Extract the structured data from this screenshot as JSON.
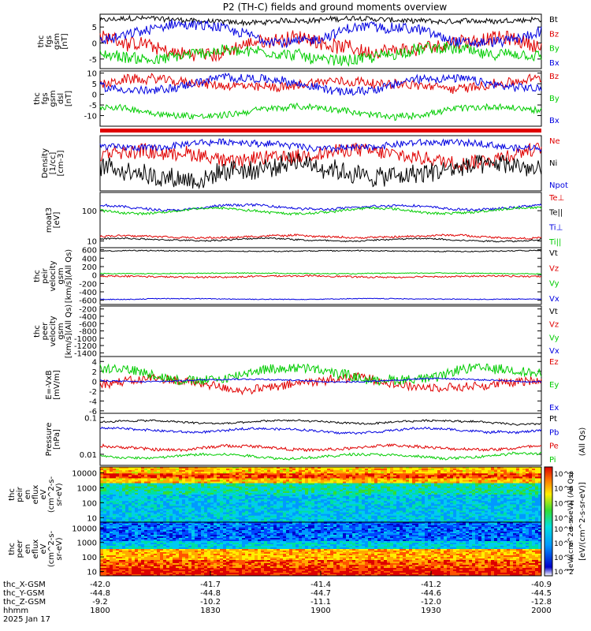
{
  "title": "P2 (TH-C) fields and ground moments overview",
  "chart_data": {
    "type": "line",
    "panels": [
      {
        "id": "fgs_gsm",
        "ylabel": [
          "thc",
          "fgs",
          "gsm",
          "[nT]"
        ],
        "yticks": [
          5,
          0,
          -5
        ],
        "ylim": [
          -8,
          9
        ],
        "series": [
          {
            "name": "Bt",
            "color": "#000000",
            "level": 7.0,
            "noise": 0.8,
            "swing": 0.6
          },
          {
            "name": "Bz",
            "color": "#e00000",
            "level": -1.0,
            "noise": 2.2,
            "swing": 2.5
          },
          {
            "name": "By",
            "color": "#00cc00",
            "level": -3.5,
            "noise": 1.8,
            "swing": 1.5
          },
          {
            "name": "Bx",
            "color": "#0000e0",
            "level": 3.0,
            "noise": 1.6,
            "swing": 2.5
          }
        ]
      },
      {
        "id": "fgs_gse",
        "ylabel": [
          "thc",
          "fgs",
          "gsm",
          "dsl",
          "[nT]"
        ],
        "yticks": [
          10,
          5,
          0,
          -5,
          -10
        ],
        "ylim": [
          -15,
          11
        ],
        "series": [
          {
            "name": "Bz",
            "color": "#e00000",
            "level": 5.0,
            "noise": 2.2,
            "swing": 2.0
          },
          {
            "name": "By",
            "color": "#00cc00",
            "level": -8.0,
            "noise": 1.5,
            "swing": 2.0
          },
          {
            "name": "Bx",
            "color": "#0000e0",
            "level": 5.0,
            "noise": 2.0,
            "swing": 3.0
          }
        ]
      },
      {
        "id": "density",
        "ylabel": [
          "Density",
          "[1/cc]",
          "[cm-3]"
        ],
        "yticks": [],
        "ylim": [
          0,
          10
        ],
        "series": [
          {
            "name": "Ne",
            "color": "#e00000",
            "level": 6.5,
            "noise": 1.3,
            "swing": 0.8
          },
          {
            "name": "Ni",
            "color": "#000000",
            "level": 3.5,
            "noise": 1.8,
            "swing": 1.0
          },
          {
            "name": "Npot",
            "color": "#0000e0",
            "level": 8.3,
            "noise": 0.6,
            "swing": 0.5
          }
        ]
      },
      {
        "id": "temperature",
        "ylabel": [
          "moat3",
          "[eV]"
        ],
        "yticks": [
          100,
          10
        ],
        "ylim": [
          6,
          400
        ],
        "log": true,
        "series": [
          {
            "name": "Te⊥",
            "color": "#e00000",
            "level": 14,
            "noise": 0.06,
            "swing": 0.04
          },
          {
            "name": "Te||",
            "color": "#000000",
            "level": 11,
            "noise": 0.05,
            "swing": 0.03
          },
          {
            "name": "Ti⊥",
            "color": "#0000e0",
            "level": 130,
            "noise": 0.08,
            "swing": 0.08
          },
          {
            "name": "Ti||",
            "color": "#00cc00",
            "level": 100,
            "noise": 0.08,
            "swing": 0.09
          }
        ]
      },
      {
        "id": "peir_velocity",
        "ylabel": [
          "thc",
          "peir",
          "velocity",
          "gsm",
          "[km/s](All Qs)"
        ],
        "yticks": [
          600,
          400,
          200,
          0,
          -200,
          -400,
          -600
        ],
        "ylim": [
          -700,
          650
        ],
        "series": [
          {
            "name": "Vt",
            "color": "#000000",
            "level": 570,
            "noise": 12,
            "swing": 10
          },
          {
            "name": "Vz",
            "color": "#e00000",
            "level": -40,
            "noise": 20,
            "swing": 15
          },
          {
            "name": "Vy",
            "color": "#00cc00",
            "level": 40,
            "noise": 10,
            "swing": 8
          },
          {
            "name": "Vx",
            "color": "#0000e0",
            "level": -570,
            "noise": 10,
            "swing": 8
          }
        ]
      },
      {
        "id": "peer_velocity",
        "ylabel": [
          "thc",
          "peer",
          "velocity",
          "gsm",
          "[km/s](All Qs)"
        ],
        "yticks": [
          -200,
          -400,
          -600,
          -800,
          -1000,
          -1200,
          -1400
        ],
        "ylim": [
          -1500,
          -120
        ],
        "series": [
          {
            "name": "Vt",
            "color": "#000000"
          },
          {
            "name": "Vz",
            "color": "#e00000"
          },
          {
            "name": "Vy",
            "color": "#00cc00"
          },
          {
            "name": "Vx",
            "color": "#0000e0"
          }
        ]
      },
      {
        "id": "efield",
        "ylabel": [
          "E=-VxB",
          "[mV/m]"
        ],
        "yticks": [
          4,
          2,
          0,
          -2,
          -4,
          -6
        ],
        "ylim": [
          -6.5,
          5
        ],
        "series": [
          {
            "name": "Ez",
            "color": "#e00000",
            "level": -0.5,
            "noise": 0.9,
            "swing": 1.0
          },
          {
            "name": "Ey",
            "color": "#00cc00",
            "level": 1.5,
            "noise": 1.0,
            "swing": 1.2
          },
          {
            "name": "Ex",
            "color": "#0000e0",
            "level": 0.2,
            "noise": 0.15,
            "swing": 0.3
          }
        ]
      },
      {
        "id": "pressure",
        "ylabel": [
          "Pressure",
          "[nPa]"
        ],
        "yticks": [
          0.1,
          0.01
        ],
        "ylim": [
          0.005,
          0.13
        ],
        "log": true,
        "series": [
          {
            "name": "Pt",
            "color": "#000000",
            "level": 0.075,
            "noise": 0.05,
            "swing": 0.04
          },
          {
            "name": "Pb",
            "color": "#0000e0",
            "level": 0.045,
            "noise": 0.06,
            "swing": 0.05
          },
          {
            "name": "Pe",
            "color": "#e00000",
            "level": 0.015,
            "noise": 0.08,
            "swing": 0.06
          },
          {
            "name": "Pi",
            "color": "#00cc00",
            "level": 0.009,
            "noise": 0.07,
            "swing": 0.06
          }
        ]
      }
    ],
    "spectrograms": [
      {
        "id": "peir_en",
        "ylabel": [
          "thc",
          "peir",
          "en",
          "eflux",
          "eV",
          "(cm^2-s-",
          "sr-eV)"
        ],
        "yticks": [
          10000,
          1000,
          100,
          10
        ]
      },
      {
        "id": "peer_en",
        "ylabel": [
          "thc",
          "peer",
          "en",
          "eflux",
          "eV",
          "(cm^2-s-",
          "sr-eV)"
        ],
        "yticks": [
          10000,
          1000,
          100,
          10
        ]
      }
    ],
    "colorbar": {
      "upper_ticks": [
        "10^8",
        "10^6",
        "10^4",
        "10^2"
      ],
      "lower_ticks": [
        "10^8",
        "10^6",
        "10^4",
        "10^2"
      ],
      "label_outer": "[eV/(cm^2-s-sr-eV)]",
      "label_inner": "[eV/(cm^2-s-sr-eV)] (All Qs)"
    },
    "right_side_label": "(All Qs)",
    "x_axis": {
      "times": [
        "1800",
        "1830",
        "1900",
        "1930",
        "2000"
      ],
      "rows": [
        {
          "label": "thc_X-GSM",
          "values": [
            "-42.0",
            "-41.7",
            "-41.4",
            "-41.2",
            "-40.9"
          ]
        },
        {
          "label": "thc_Y-GSM",
          "values": [
            "-44.8",
            "-44.8",
            "-44.7",
            "-44.6",
            "-44.5"
          ]
        },
        {
          "label": "thc_Z-GSM",
          "values": [
            "-9.2",
            "-10.2",
            "-11.1",
            "-12.0",
            "-12.8"
          ]
        },
        {
          "label": "hhmm",
          "values": [
            "1800",
            "1830",
            "1900",
            "1930",
            "2000"
          ]
        }
      ],
      "date": "2025 Jan 17"
    }
  }
}
